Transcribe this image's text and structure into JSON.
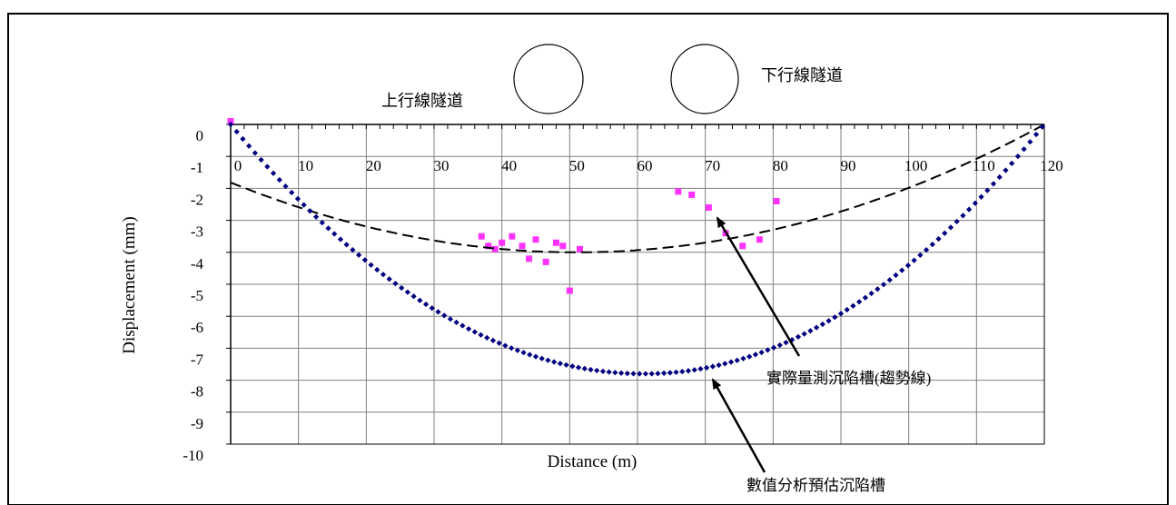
{
  "chart_data": {
    "type": "scatter",
    "title": "",
    "xlabel": "Distance (m)",
    "ylabel": "Displacement (mm)",
    "xlim": [
      0,
      120
    ],
    "ylim": [
      -10,
      0
    ],
    "grid": true,
    "x_ticks": [
      0,
      10,
      20,
      30,
      40,
      50,
      60,
      70,
      80,
      90,
      100,
      110,
      120
    ],
    "y_ticks": [
      0,
      -1,
      -2,
      -3,
      -4,
      -5,
      -6,
      -7,
      -8,
      -9,
      -10
    ],
    "tick_labels_x": [
      "0",
      "10",
      "20",
      "30",
      "40",
      "50",
      "60",
      "70",
      "80",
      "90",
      "100",
      "110",
      "120"
    ],
    "tick_labels_y": [
      "0",
      "-1",
      "-2",
      "-3",
      "-4",
      "-5",
      "-6",
      "-7",
      "-8",
      "-9",
      "-10"
    ],
    "series": [
      {
        "type": "scatter",
        "marker": "square",
        "color": "#ff33ff",
        "points": [
          [
            0,
            0.1
          ],
          [
            37,
            -3.5
          ],
          [
            38,
            -3.8
          ],
          [
            39,
            -3.9
          ],
          [
            40,
            -3.7
          ],
          [
            41.5,
            -3.5
          ],
          [
            43,
            -3.8
          ],
          [
            44,
            -4.2
          ],
          [
            45,
            -3.6
          ],
          [
            46.5,
            -4.3
          ],
          [
            48,
            -3.7
          ],
          [
            49,
            -3.8
          ],
          [
            50,
            -5.2
          ],
          [
            51.5,
            -3.9
          ],
          [
            66,
            -2.1
          ],
          [
            68,
            -2.2
          ],
          [
            70.5,
            -2.6
          ],
          [
            73,
            -3.4
          ],
          [
            75.5,
            -3.8
          ],
          [
            78,
            -3.6
          ],
          [
            80.5,
            -2.4
          ]
        ]
      },
      {
        "type": "line",
        "style": "dashed",
        "color": "#000000",
        "shape": "quadratic",
        "x_min": 0,
        "vertex_x": 51,
        "vertex_y": -4,
        "end_x": 120,
        "end_y": 0
      },
      {
        "type": "line",
        "style": "dotted",
        "color": "#000080",
        "shape": "quadratic",
        "start_x": 0,
        "start_y": 0,
        "vertex_x": 61,
        "vertex_y": -7.8,
        "end_x": 120,
        "end_y": 0
      }
    ],
    "annotations": {
      "tunnel_left": "上行線隧道",
      "tunnel_right": "下行線隧道",
      "trend_label": "實際量測沉陷槽(趨勢線)",
      "numerical_label": "數值分析預估沉陷槽"
    }
  }
}
